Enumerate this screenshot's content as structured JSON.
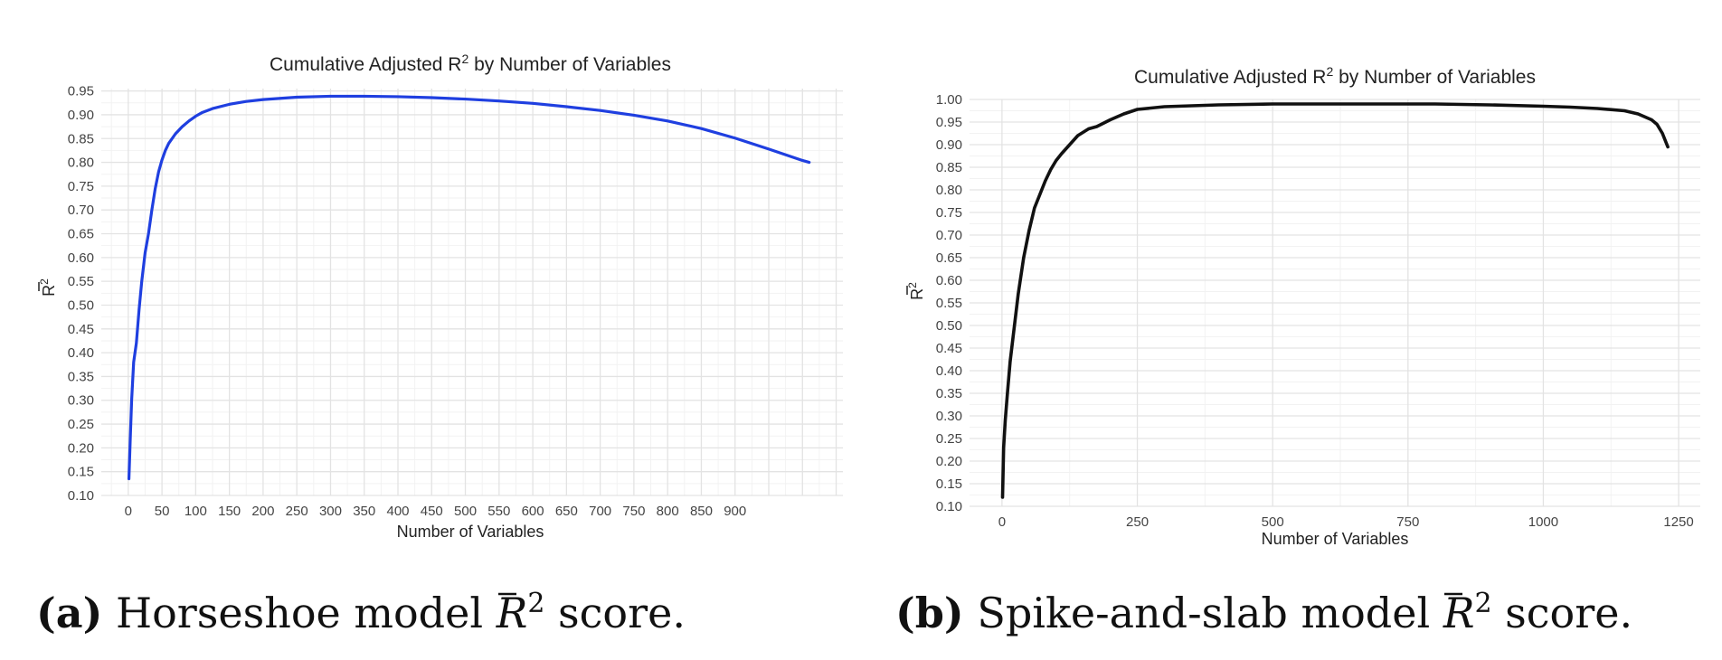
{
  "chart_data": [
    {
      "type": "line",
      "title": "Cumulative Adjusted R",
      "title_sup": "2",
      "title_rest": " by Number of Variables",
      "xlabel": "Number of Variables",
      "ylabel": "R",
      "ylabel_sup": "2",
      "xlim": [
        -40,
        1060
      ],
      "ylim": [
        0.1,
        0.955
      ],
      "xticks": [
        0,
        50,
        100,
        150,
        200,
        250,
        300,
        350,
        400,
        450,
        500,
        550,
        600,
        650,
        700,
        750,
        800,
        850,
        900
      ],
      "yticks": [
        0.1,
        0.15,
        0.2,
        0.25,
        0.3,
        0.35,
        0.4,
        0.45,
        0.5,
        0.55,
        0.6,
        0.65,
        0.7,
        0.75,
        0.8,
        0.85,
        0.9,
        0.95
      ],
      "grid": true,
      "line_color": "#1f3fe0",
      "series": [
        {
          "x": [
            1,
            3,
            5,
            8,
            12,
            16,
            20,
            25,
            30,
            35,
            40,
            45,
            50,
            55,
            60,
            70,
            80,
            90,
            100,
            110,
            125,
            150,
            175,
            200,
            250,
            300,
            350,
            400,
            450,
            500,
            550,
            600,
            650,
            700,
            750,
            800,
            850,
            900,
            950,
            1000,
            1010
          ],
          "y": [
            0.135,
            0.22,
            0.3,
            0.38,
            0.42,
            0.49,
            0.55,
            0.61,
            0.65,
            0.7,
            0.745,
            0.78,
            0.805,
            0.825,
            0.84,
            0.86,
            0.875,
            0.887,
            0.897,
            0.905,
            0.913,
            0.922,
            0.928,
            0.932,
            0.937,
            0.939,
            0.939,
            0.938,
            0.936,
            0.933,
            0.929,
            0.924,
            0.917,
            0.909,
            0.899,
            0.887,
            0.871,
            0.851,
            0.828,
            0.804,
            0.8
          ]
        }
      ]
    },
    {
      "type": "line",
      "title": "Cumulative Adjusted R",
      "title_sup": "2",
      "title_rest": " by Number of Variables",
      "xlabel": "Number of Variables",
      "ylabel": "R",
      "ylabel_sup": "2",
      "xlim": [
        -60,
        1290
      ],
      "ylim": [
        0.1,
        1.0
      ],
      "xticks": [
        0,
        250,
        500,
        750,
        1000,
        1250
      ],
      "yticks": [
        0.1,
        0.15,
        0.2,
        0.25,
        0.3,
        0.35,
        0.4,
        0.45,
        0.5,
        0.55,
        0.6,
        0.65,
        0.7,
        0.75,
        0.8,
        0.85,
        0.9,
        0.95,
        1.0
      ],
      "grid": true,
      "line_color": "#111111",
      "series": [
        {
          "x": [
            1,
            3,
            6,
            10,
            15,
            20,
            25,
            30,
            35,
            40,
            50,
            60,
            70,
            80,
            90,
            100,
            110,
            125,
            140,
            160,
            175,
            200,
            225,
            250,
            300,
            400,
            500,
            600,
            700,
            800,
            900,
            1000,
            1050,
            1100,
            1150,
            1175,
            1200,
            1210,
            1220,
            1230
          ],
          "y": [
            0.12,
            0.23,
            0.29,
            0.35,
            0.42,
            0.47,
            0.52,
            0.57,
            0.61,
            0.65,
            0.71,
            0.76,
            0.79,
            0.82,
            0.845,
            0.865,
            0.88,
            0.9,
            0.92,
            0.935,
            0.94,
            0.955,
            0.968,
            0.978,
            0.984,
            0.988,
            0.99,
            0.99,
            0.99,
            0.99,
            0.988,
            0.985,
            0.983,
            0.98,
            0.975,
            0.968,
            0.955,
            0.945,
            0.925,
            0.895
          ]
        }
      ]
    }
  ],
  "captions": [
    {
      "label": "(a)",
      "text_before": " Horseshoe model ",
      "symbol": "R",
      "sup": "2",
      "text_after": " score."
    },
    {
      "label": "(b)",
      "text_before": " Spike-and-slab model ",
      "symbol": "R",
      "sup": "2",
      "text_after": " score."
    }
  ]
}
